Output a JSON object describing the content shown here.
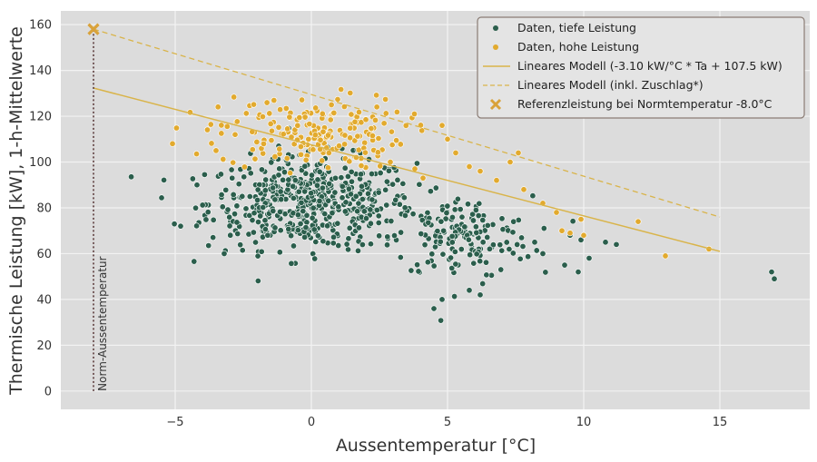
{
  "chart_data": {
    "type": "scatter",
    "xlabel": "Aussentemperatur [°C]",
    "ylabel": "Thermische Leistung [kW], 1-h-Mittelwerte",
    "xlim": [
      -9.2,
      18.3
    ],
    "ylim": [
      -8,
      166
    ],
    "xticks": [
      -5,
      0,
      5,
      10,
      15
    ],
    "yticks": [
      0,
      20,
      40,
      60,
      80,
      100,
      120,
      140,
      160
    ],
    "grid": true,
    "legend_position": "top-right",
    "colors": {
      "background": "#dcdcdc",
      "grid": "#f2f2f2",
      "low": "#2b5e4c",
      "high": "#e2aa2e",
      "model": "#d9b44a",
      "vline": "#5a3a3a"
    },
    "series": [
      {
        "name": "Daten, tiefe Leistung",
        "kind": "scatter",
        "color": "#2b5e4c",
        "clusters": [
          {
            "center": [
              0,
              82
            ],
            "spread": [
              1.9,
              10
            ],
            "count": 520
          },
          {
            "center": [
              5.5,
              67
            ],
            "spread": [
              1.3,
              9
            ],
            "count": 160
          }
        ],
        "points": [
          [
            -4.8,
            72
          ],
          [
            -4.2,
            90
          ],
          [
            -3.2,
            60
          ],
          [
            8.5,
            60
          ],
          [
            9.3,
            55
          ],
          [
            9.8,
            52
          ],
          [
            10.2,
            58
          ],
          [
            10.8,
            65
          ],
          [
            11.2,
            64
          ],
          [
            16.9,
            52
          ],
          [
            17.0,
            49
          ],
          [
            4.5,
            36
          ],
          [
            4.8,
            40
          ],
          [
            5.8,
            44
          ],
          [
            6.2,
            42
          ],
          [
            8.2,
            65
          ],
          [
            9.5,
            68
          ],
          [
            9.9,
            66
          ]
        ]
      },
      {
        "name": "Daten, hohe Leistung",
        "kind": "scatter",
        "color": "#e2aa2e",
        "clusters": [
          {
            "center": [
              0,
              113
            ],
            "spread": [
              1.7,
              8
            ],
            "count": 190
          }
        ],
        "points": [
          [
            -5.1,
            108
          ],
          [
            -3.5,
            105
          ],
          [
            -2.8,
            112
          ],
          [
            4.8,
            116
          ],
          [
            5.0,
            110
          ],
          [
            5.3,
            104
          ],
          [
            5.8,
            98
          ],
          [
            6.2,
            96
          ],
          [
            6.8,
            92
          ],
          [
            7.3,
            100
          ],
          [
            7.6,
            104
          ],
          [
            7.8,
            88
          ],
          [
            8.5,
            82
          ],
          [
            9.0,
            78
          ],
          [
            9.2,
            70
          ],
          [
            9.5,
            69
          ],
          [
            9.9,
            75
          ],
          [
            10.0,
            68
          ],
          [
            12.0,
            74
          ],
          [
            13.0,
            59
          ],
          [
            14.6,
            62
          ],
          [
            3.8,
            97
          ],
          [
            4.1,
            93
          ],
          [
            2.9,
            100
          ]
        ]
      },
      {
        "name": "Lineares Modell (-3.10 kW/°C * Ta + 107.5 kW)",
        "kind": "line",
        "color": "#d9b44a",
        "x": [
          -8.0,
          15.0
        ],
        "y": [
          132.3,
          61.0
        ]
      },
      {
        "name": "Lineares Modell (inkl. Zuschlag*)",
        "kind": "dashed-line",
        "color": "#d9b44a",
        "x": [
          -8.0,
          15.0
        ],
        "y": [
          158.0,
          76.0
        ]
      },
      {
        "name": "Referenzleistung bei Normtemperatur -8.0°C",
        "kind": "marker-x",
        "color": "#d9a23a",
        "x": [
          -8.0
        ],
        "y": [
          158.0
        ]
      }
    ],
    "annotations": [
      {
        "text": "Norm-Aussentemperatur",
        "x": -8.0,
        "y_from": 0,
        "y_to": 158
      }
    ]
  }
}
